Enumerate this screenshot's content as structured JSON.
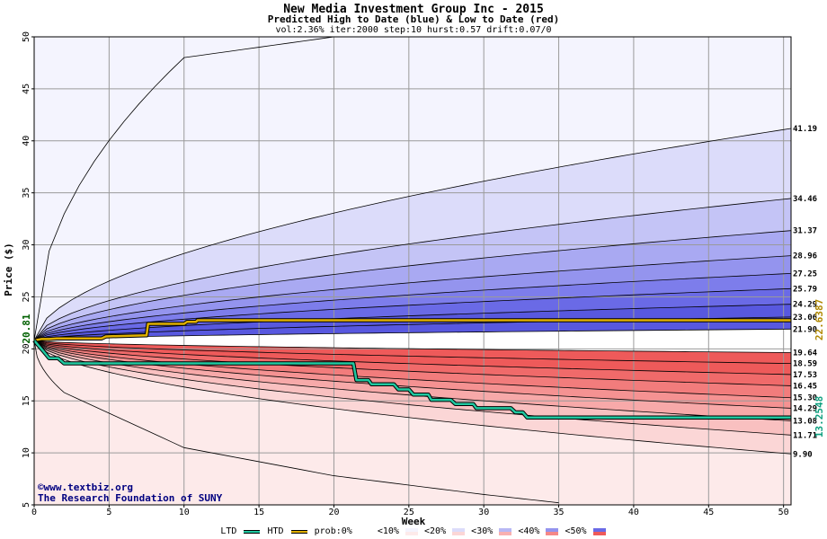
{
  "chart_data": {
    "type": "area",
    "title": "New Media Investment Group Inc - 2015",
    "subtitle": "Predicted High to Date (blue) &  Low to Date (red)",
    "params": "vol:2.36% iter:2000 step:10 hurst:0.57 drift:0.07/0",
    "xlabel": "Week",
    "ylabel": "Price ($)",
    "xlim": [
      0,
      50.5
    ],
    "ylim": [
      5,
      50
    ],
    "x_ticks": [
      "0",
      "5",
      "10",
      "15",
      "20",
      "25",
      "30",
      "35",
      "40",
      "45",
      "50"
    ],
    "y_ticks": [
      "5",
      "10",
      "15",
      "20",
      "25",
      "30",
      "35",
      "40",
      "45",
      "50"
    ],
    "start_price": "20.81",
    "start_value": 20.81,
    "grid": true,
    "high_percentiles": [
      {
        "value": 41.19,
        "label": "41.19"
      },
      {
        "value": 34.46,
        "label": "34.46"
      },
      {
        "value": 31.37,
        "label": "31.37"
      },
      {
        "value": 28.96,
        "label": "28.96"
      },
      {
        "value": 27.25,
        "label": "27.25"
      },
      {
        "value": 25.79,
        "label": "25.79"
      },
      {
        "value": 24.29,
        "label": "24.29"
      },
      {
        "value": 23.06,
        "label": "23.06"
      },
      {
        "value": 21.9,
        "label": "21.90"
      }
    ],
    "low_percentiles": [
      {
        "value": 19.64,
        "label": "19.64"
      },
      {
        "value": 18.59,
        "label": "18.59"
      },
      {
        "value": 17.53,
        "label": "17.53"
      },
      {
        "value": 16.45,
        "label": "16.45"
      },
      {
        "value": 15.3,
        "label": "15.30"
      },
      {
        "value": 14.29,
        "label": "14.29"
      },
      {
        "value": 13.08,
        "label": "13.08"
      },
      {
        "value": 11.71,
        "label": "11.71"
      },
      {
        "value": 9.9,
        "label": "9.90"
      }
    ],
    "band_colors_high": [
      "#f4f4fe",
      "#dcdcfa",
      "#c4c4f6",
      "#a9a9f2",
      "#9494ee",
      "#7d7deb",
      "#6a6ae6",
      "#5858df"
    ],
    "band_colors_low": [
      "#fdeaea",
      "#fbd6d6",
      "#f9c0c0",
      "#f7a9a9",
      "#f59292",
      "#f27c7c",
      "#f06a6a",
      "#ee5a5a"
    ],
    "highest_path": {
      "x": [
        0,
        10,
        20,
        30,
        35
      ],
      "y": [
        20.81,
        48,
        50,
        50,
        50
      ]
    },
    "lowest_path": {
      "x": [
        0,
        2,
        10,
        20,
        30,
        35
      ],
      "y": [
        20.81,
        15.8,
        10.5,
        7.8,
        6,
        5.2
      ]
    },
    "htd": {
      "name": "HTD",
      "color": "#e0b000",
      "end_label": "22.6387",
      "points": [
        [
          0,
          20.81
        ],
        [
          0.5,
          20.95
        ],
        [
          1,
          20.95
        ],
        [
          1.5,
          21.0
        ],
        [
          4.5,
          21.0
        ],
        [
          4.8,
          21.2
        ],
        [
          7.5,
          21.3
        ],
        [
          7.6,
          22.4
        ],
        [
          10,
          22.4
        ],
        [
          10.2,
          22.6
        ],
        [
          10.8,
          22.6
        ],
        [
          10.9,
          22.75
        ],
        [
          50.5,
          22.75
        ]
      ]
    },
    "ltd": {
      "name": "LTD",
      "color": "#20c8a0",
      "end_label": "13.2548",
      "points": [
        [
          0,
          20.81
        ],
        [
          0.6,
          19.8
        ],
        [
          1,
          19.1
        ],
        [
          1.6,
          19.1
        ],
        [
          2,
          18.6
        ],
        [
          21.3,
          18.6
        ],
        [
          21.5,
          17.0
        ],
        [
          22.3,
          17.0
        ],
        [
          22.5,
          16.6
        ],
        [
          24.0,
          16.6
        ],
        [
          24.3,
          16.1
        ],
        [
          25.0,
          16.1
        ],
        [
          25.3,
          15.6
        ],
        [
          26.3,
          15.6
        ],
        [
          26.5,
          15.1
        ],
        [
          27.8,
          15.1
        ],
        [
          28.1,
          14.7
        ],
        [
          29.3,
          14.7
        ],
        [
          29.5,
          14.3
        ],
        [
          31.8,
          14.3
        ],
        [
          32.1,
          13.9
        ],
        [
          32.6,
          13.9
        ],
        [
          32.9,
          13.4
        ],
        [
          50.5,
          13.4
        ]
      ]
    }
  },
  "credits": {
    "site": "©www.textbiz.org",
    "org": "The Research Foundation of SUNY"
  },
  "legend": {
    "ltd": "LTD",
    "htd": "HTD",
    "prob": "prob:0%",
    "p10": "<10%",
    "p20": "<20%",
    "p30": "<30%",
    "p40": "<40%",
    "p50": "<50%"
  }
}
